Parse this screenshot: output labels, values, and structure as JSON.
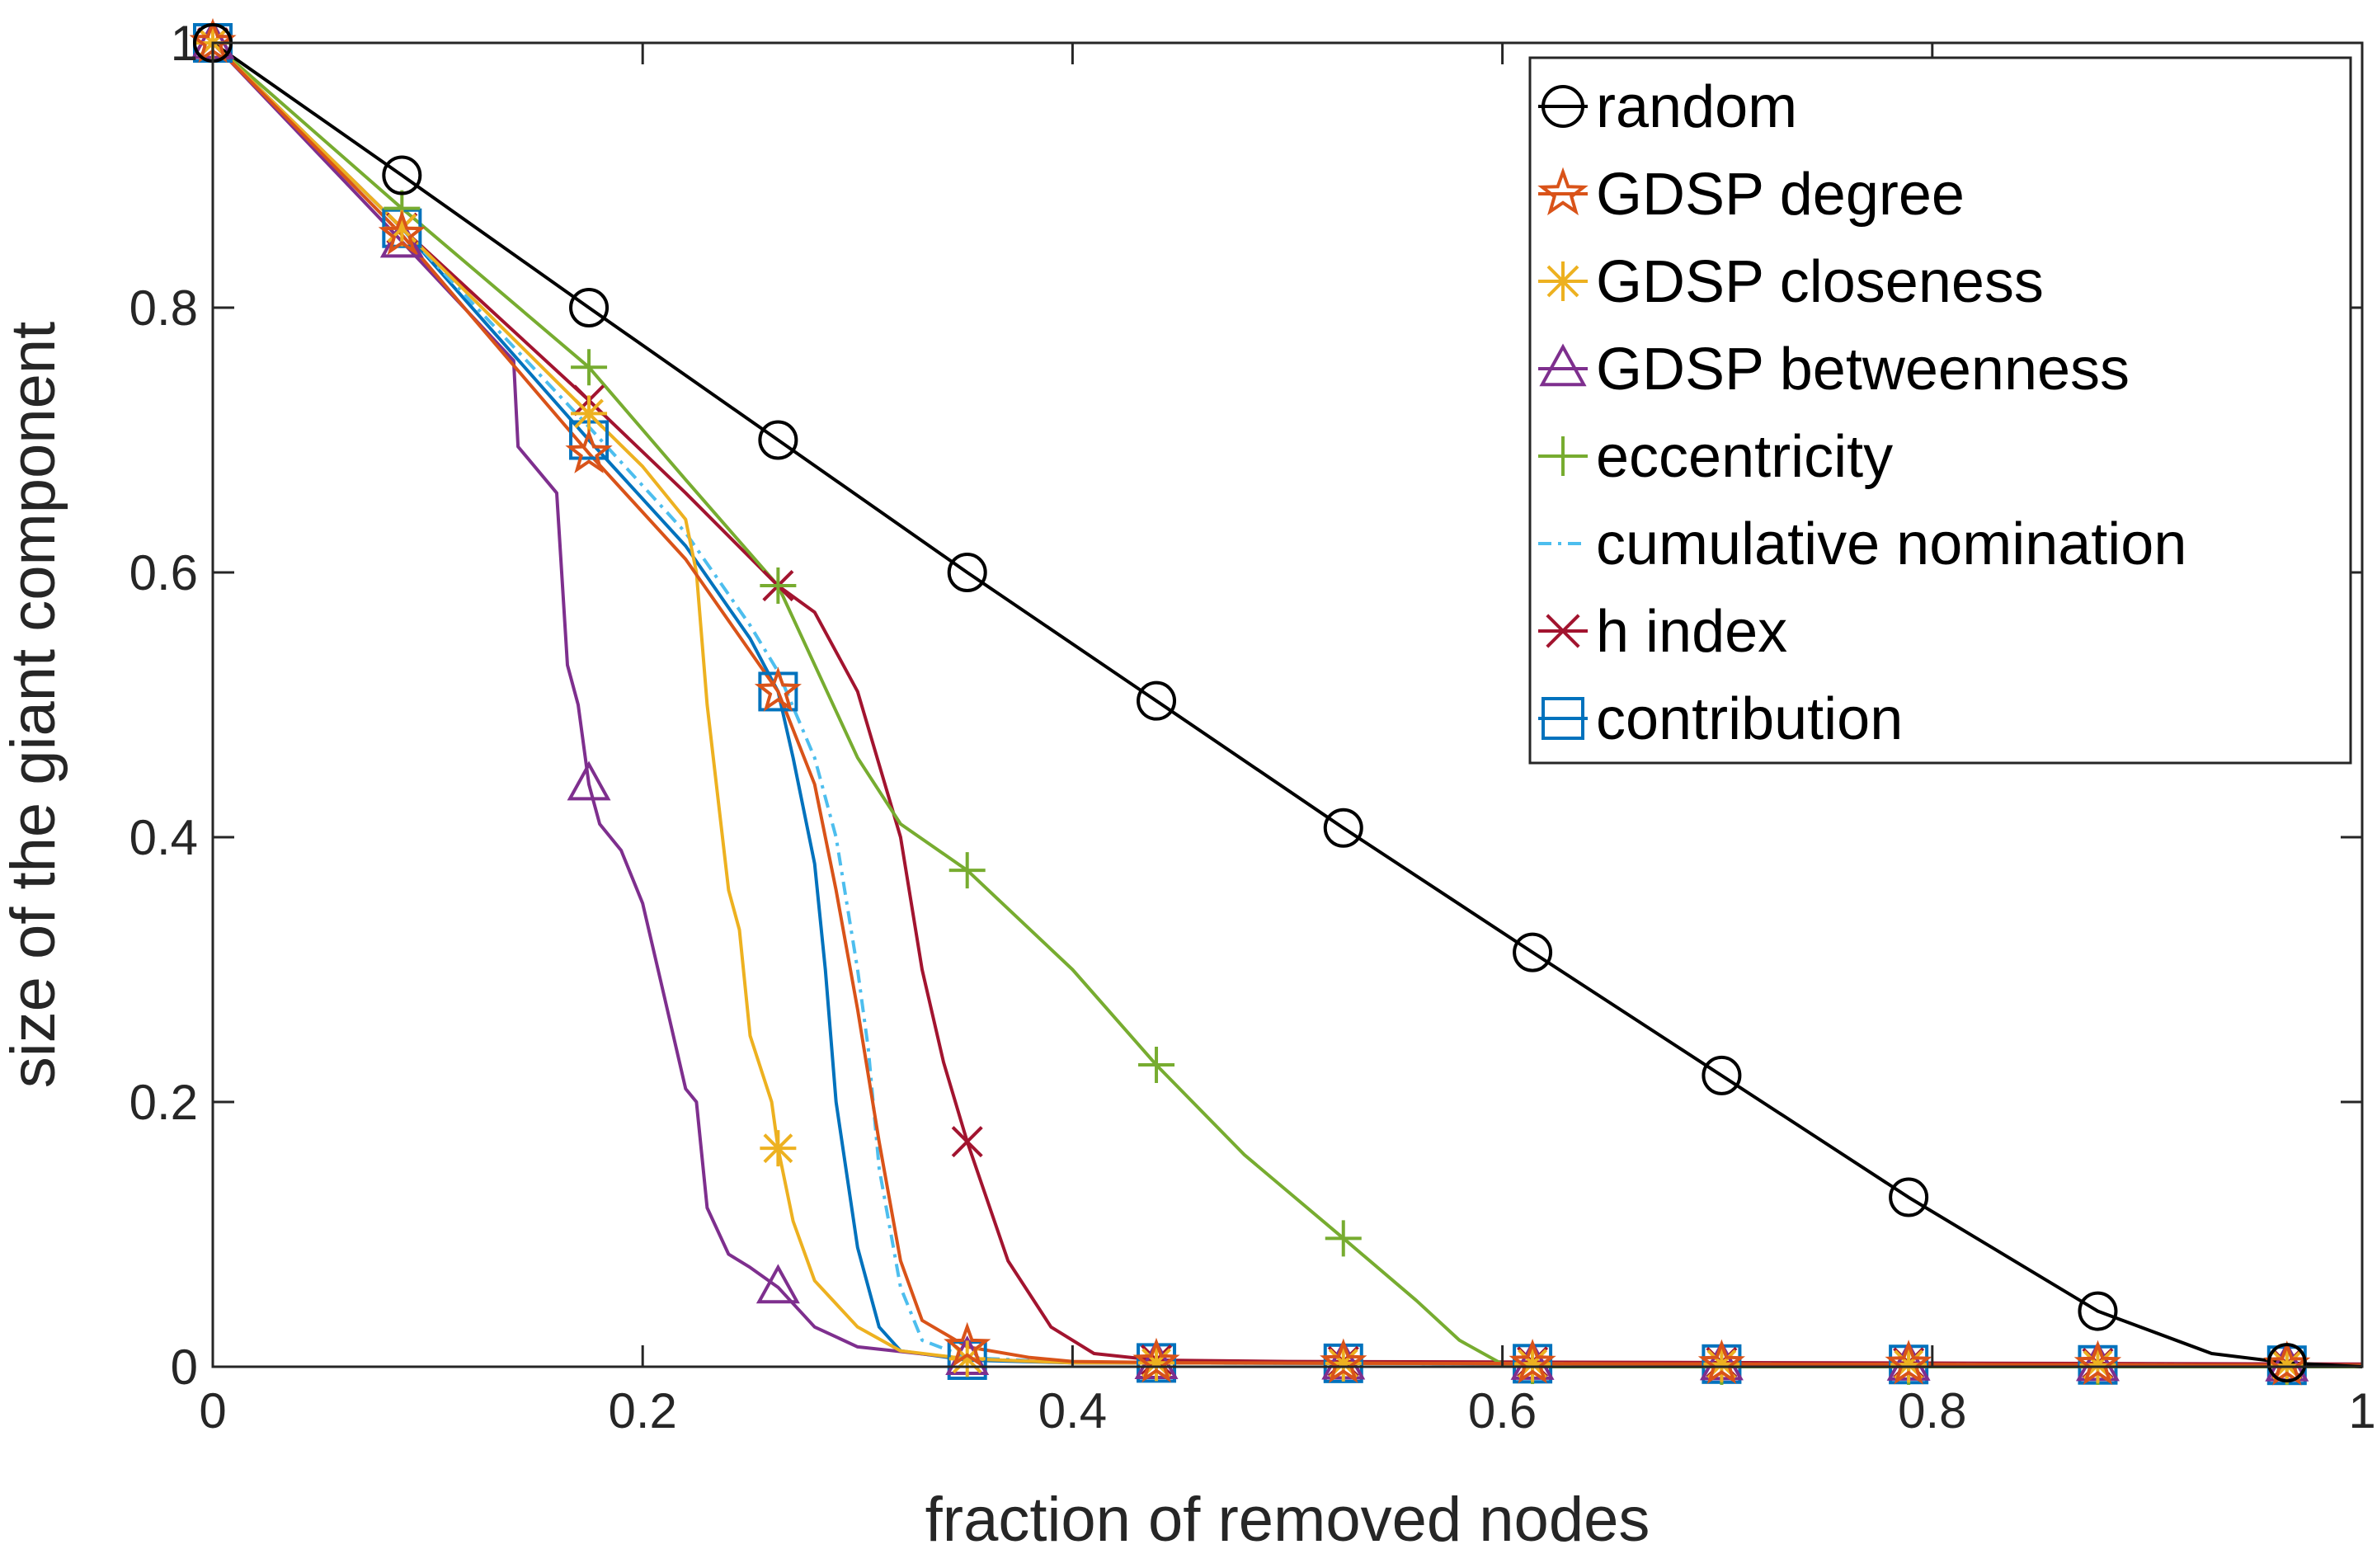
{
  "chart_data": {
    "type": "line",
    "xlabel": "fraction of removed nodes",
    "ylabel": "size of the giant component",
    "xlim": [
      0,
      1
    ],
    "ylim": [
      0,
      1
    ],
    "xticks": [
      0,
      0.2,
      0.4,
      0.6,
      0.8,
      1
    ],
    "yticks": [
      0,
      0.2,
      0.4,
      0.6,
      0.8,
      1
    ],
    "xtick_labels": [
      "0",
      "0.2",
      "0.4",
      "0.6",
      "0.8",
      "1"
    ],
    "ytick_labels": [
      "0",
      "0.2",
      "0.4",
      "0.6",
      "0.8",
      "1"
    ],
    "grid": false,
    "legend_position": "top-right",
    "marker_x": [
      0,
      0.088,
      0.175,
      0.263,
      0.351,
      0.439,
      0.526,
      0.614,
      0.702,
      0.789,
      0.877,
      0.965
    ],
    "series": [
      {
        "name": "random",
        "color": "#000000",
        "marker": "circle",
        "x": [
          0,
          0.088,
          0.175,
          0.263,
          0.351,
          0.439,
          0.526,
          0.614,
          0.702,
          0.789,
          0.877,
          0.93,
          0.965,
          1.0
        ],
        "y": [
          1.0,
          0.9,
          0.8,
          0.7,
          0.6,
          0.503,
          0.407,
          0.313,
          0.22,
          0.128,
          0.042,
          0.01,
          0.003,
          0.0
        ]
      },
      {
        "name": "GDSP degree",
        "color": "#D95319",
        "marker": "star",
        "x": [
          0,
          0.088,
          0.175,
          0.22,
          0.263,
          0.28,
          0.29,
          0.3,
          0.31,
          0.32,
          0.33,
          0.351,
          0.38,
          0.4,
          0.45,
          1.0
        ],
        "y": [
          1.0,
          0.855,
          0.69,
          0.61,
          0.51,
          0.44,
          0.36,
          0.27,
          0.17,
          0.08,
          0.035,
          0.015,
          0.007,
          0.004,
          0.003,
          0.001
        ]
      },
      {
        "name": "GDSP closeness",
        "color": "#EDB120",
        "marker": "asterisk",
        "x": [
          0,
          0.088,
          0.175,
          0.2,
          0.22,
          0.225,
          0.23,
          0.24,
          0.245,
          0.25,
          0.26,
          0.263,
          0.27,
          0.28,
          0.3,
          0.32,
          0.351,
          0.4,
          1.0
        ],
        "y": [
          1.0,
          0.86,
          0.72,
          0.68,
          0.64,
          0.6,
          0.5,
          0.36,
          0.33,
          0.25,
          0.2,
          0.165,
          0.11,
          0.065,
          0.03,
          0.012,
          0.006,
          0.003,
          0.001
        ]
      },
      {
        "name": "GDSP betweenness",
        "color": "#7E2F8E",
        "marker": "triangle",
        "x": [
          0,
          0.088,
          0.14,
          0.142,
          0.16,
          0.165,
          0.17,
          0.175,
          0.18,
          0.19,
          0.2,
          0.21,
          0.22,
          0.225,
          0.23,
          0.24,
          0.25,
          0.263,
          0.28,
          0.3,
          0.351,
          0.4,
          1.0
        ],
        "y": [
          1.0,
          0.85,
          0.76,
          0.695,
          0.66,
          0.53,
          0.5,
          0.44,
          0.41,
          0.39,
          0.35,
          0.28,
          0.21,
          0.2,
          0.12,
          0.085,
          0.075,
          0.06,
          0.03,
          0.015,
          0.006,
          0.003,
          0.001
        ]
      },
      {
        "name": "eccentricity",
        "color": "#77AC30",
        "marker": "plus",
        "x": [
          0,
          0.088,
          0.175,
          0.22,
          0.263,
          0.3,
          0.32,
          0.351,
          0.4,
          0.439,
          0.48,
          0.526,
          0.56,
          0.58,
          0.6,
          0.62,
          1.0
        ],
        "y": [
          1.0,
          0.875,
          0.755,
          0.67,
          0.59,
          0.46,
          0.41,
          0.375,
          0.3,
          0.228,
          0.16,
          0.097,
          0.05,
          0.02,
          0.002,
          0.0,
          0.0
        ]
      },
      {
        "name": "cumulative nomination",
        "color": "#4DBEEE",
        "marker": "none",
        "x": [
          0,
          0.088,
          0.175,
          0.22,
          0.25,
          0.263,
          0.28,
          0.29,
          0.3,
          0.305,
          0.31,
          0.32,
          0.33,
          0.351,
          0.4,
          1.0
        ],
        "y": [
          1.0,
          0.86,
          0.71,
          0.63,
          0.56,
          0.525,
          0.46,
          0.4,
          0.3,
          0.24,
          0.15,
          0.06,
          0.02,
          0.007,
          0.003,
          0.001
        ]
      },
      {
        "name": "h index",
        "color": "#A2142F",
        "marker": "x",
        "x": [
          0,
          0.088,
          0.175,
          0.22,
          0.263,
          0.28,
          0.3,
          0.32,
          0.33,
          0.34,
          0.351,
          0.37,
          0.39,
          0.41,
          0.439,
          0.5,
          1.0
        ],
        "y": [
          1.0,
          0.86,
          0.73,
          0.66,
          0.59,
          0.57,
          0.51,
          0.4,
          0.3,
          0.23,
          0.17,
          0.08,
          0.03,
          0.01,
          0.005,
          0.004,
          0.002
        ]
      },
      {
        "name": "contribution",
        "color": "#0072BD",
        "marker": "square",
        "x": [
          0,
          0.088,
          0.175,
          0.22,
          0.25,
          0.263,
          0.27,
          0.28,
          0.285,
          0.29,
          0.3,
          0.31,
          0.32,
          0.351,
          0.4,
          1.0
        ],
        "y": [
          1.0,
          0.86,
          0.7,
          0.62,
          0.55,
          0.51,
          0.46,
          0.38,
          0.3,
          0.2,
          0.09,
          0.03,
          0.012,
          0.005,
          0.003,
          0.001
        ]
      }
    ]
  }
}
